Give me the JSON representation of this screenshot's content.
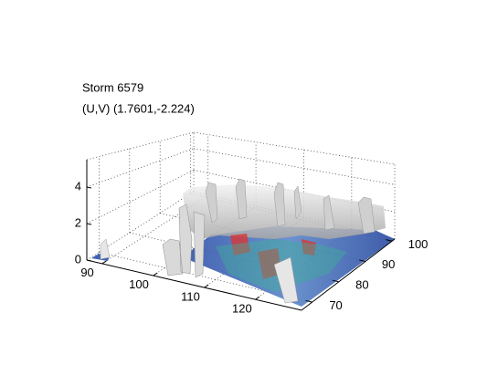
{
  "chart_data": {
    "type": "isosurface",
    "title": "Storm 6579",
    "subtitle": "(U,V) (1.7601,-2.224)",
    "xlim": [
      87,
      129
    ],
    "xticks": [
      90,
      100,
      110,
      120
    ],
    "ylim": [
      66,
      101
    ],
    "yticks": [
      70,
      80,
      90,
      100
    ],
    "zlim": [
      0,
      5.5
    ],
    "zticks": [
      0,
      2,
      4
    ],
    "grid": true
  }
}
